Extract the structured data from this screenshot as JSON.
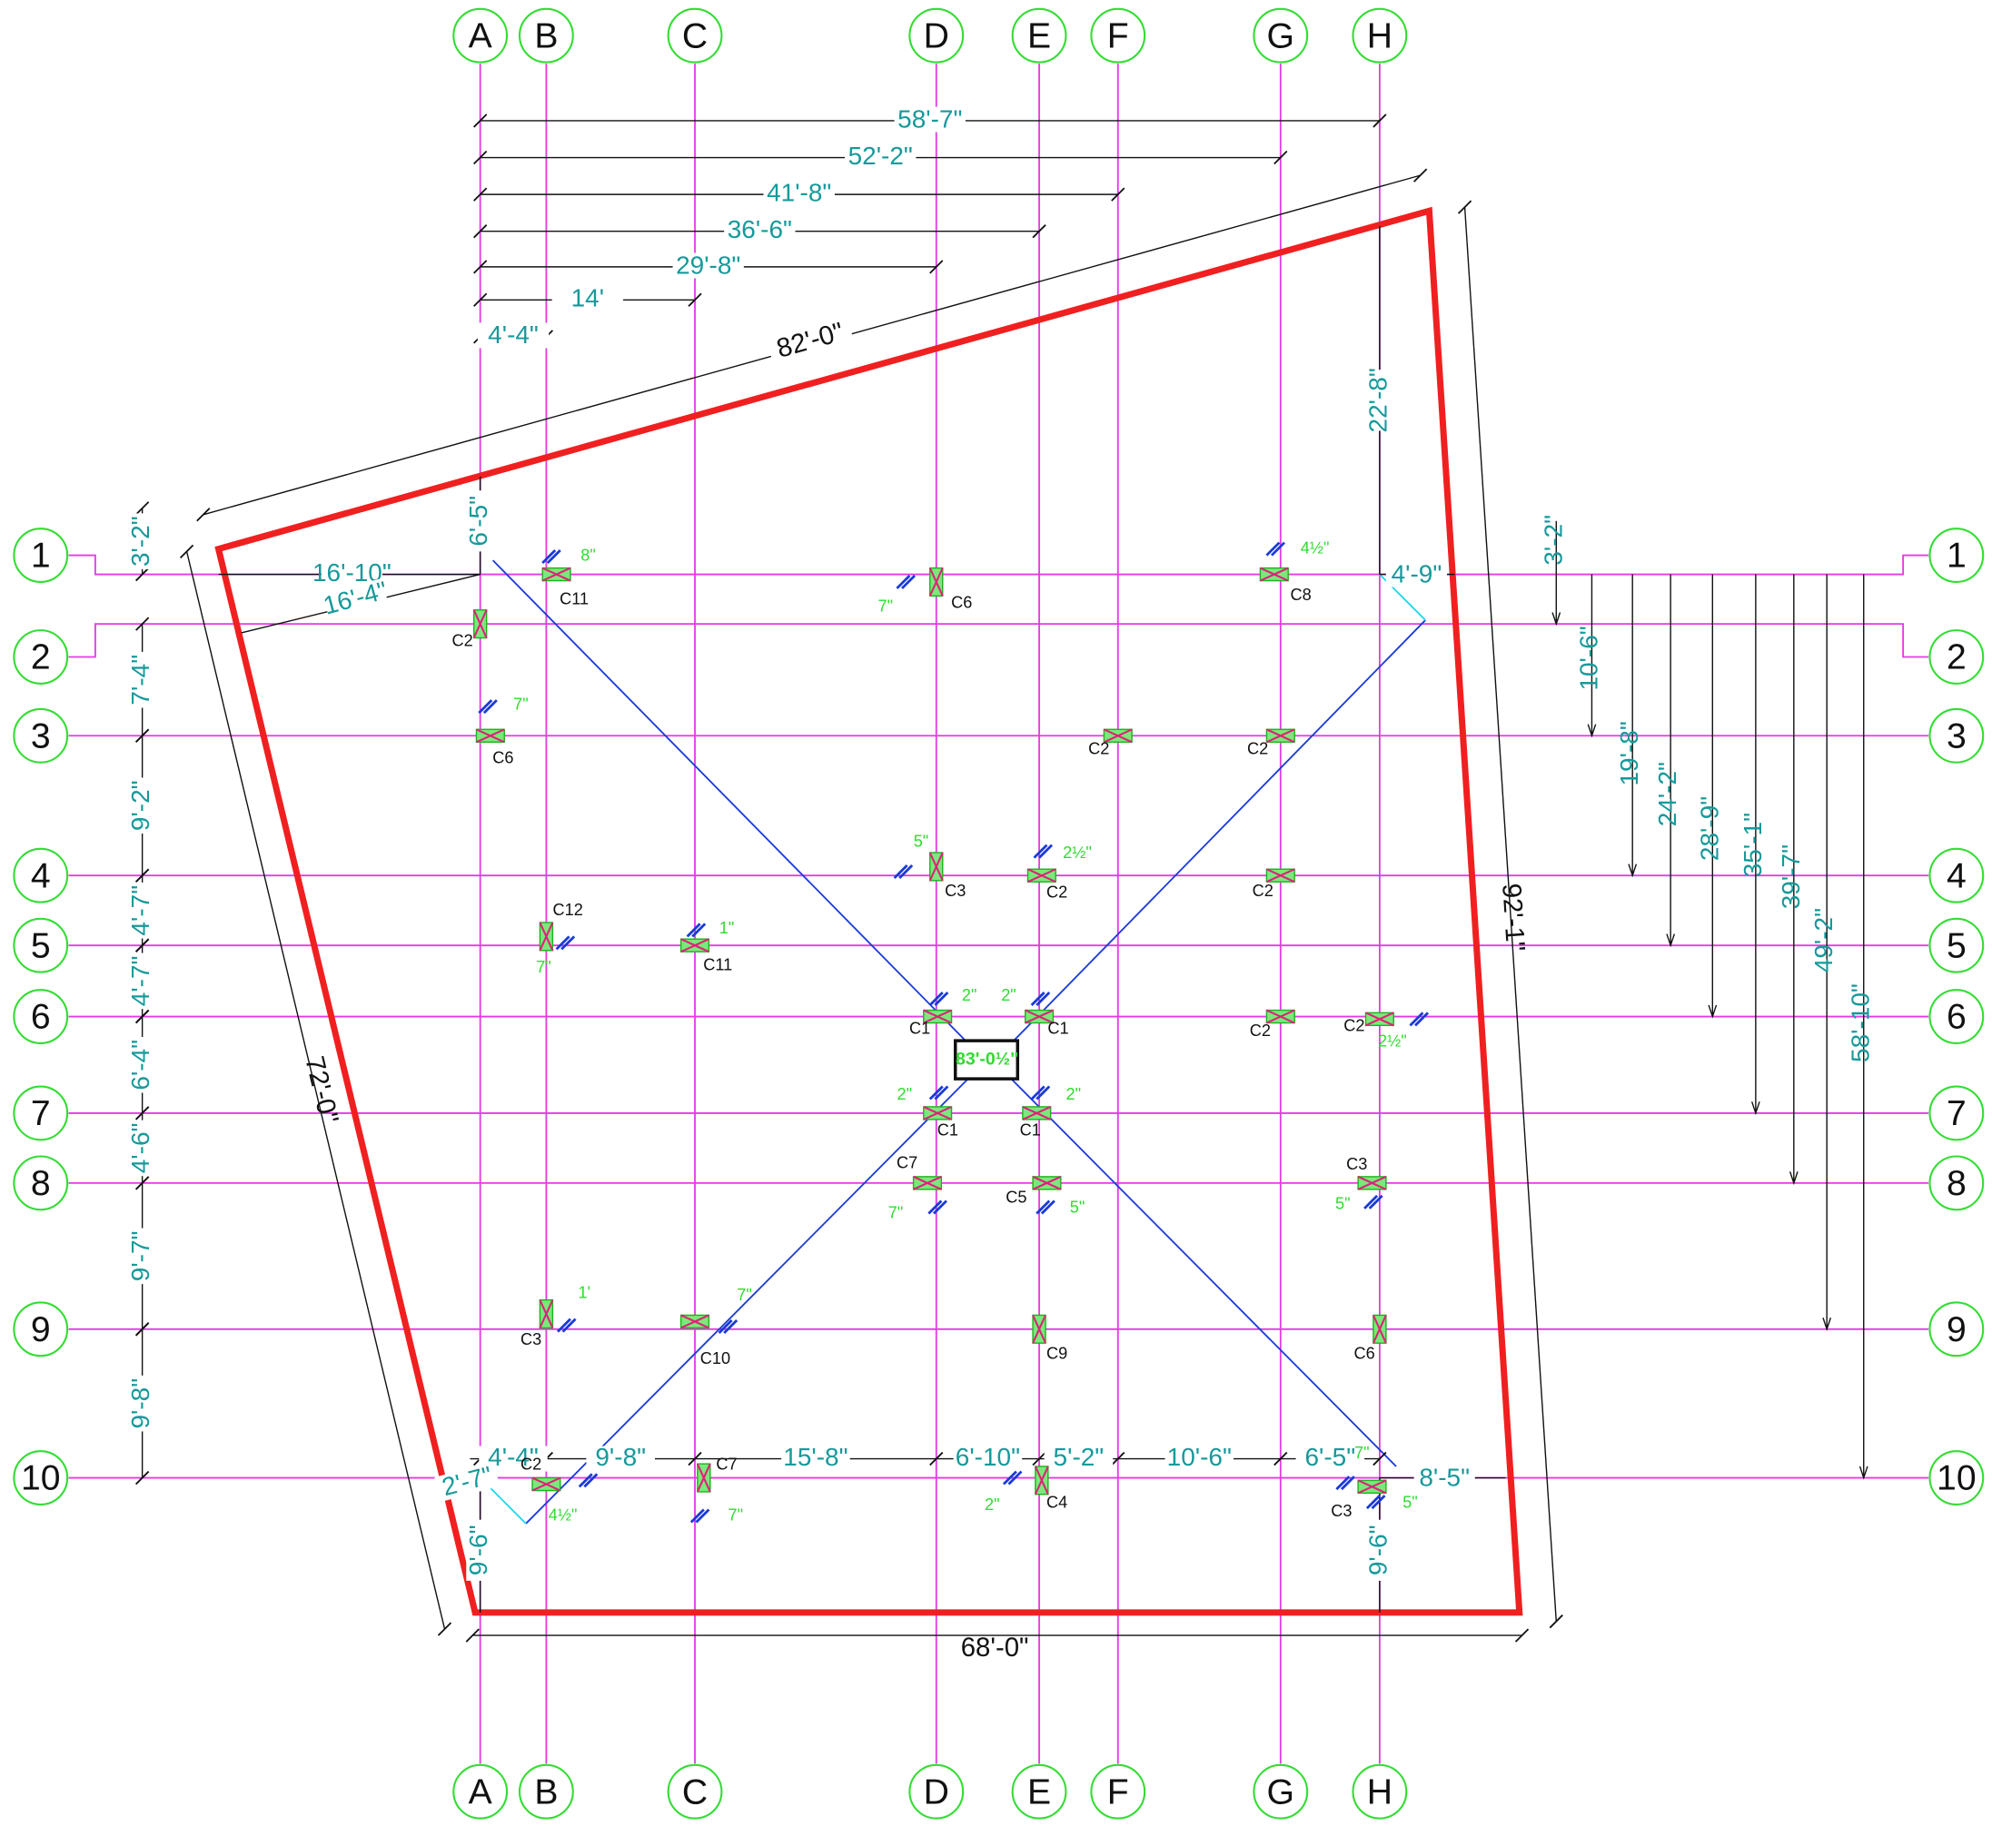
{
  "grid_columns": [
    "A",
    "B",
    "C",
    "D",
    "E",
    "F",
    "G",
    "H"
  ],
  "grid_rows": [
    "1",
    "2",
    "3",
    "4",
    "5",
    "6",
    "7",
    "8",
    "9",
    "10"
  ],
  "top_dimensions": [
    "58'-7\"",
    "52'-2\"",
    "41'-8\"",
    "36'-6\"",
    "29'-8\"",
    "14'",
    "4'-4\""
  ],
  "bottom_dimensions": [
    "4'-4\"",
    "9'-8\"",
    "15'-8\"",
    "6'-10\"",
    "5'-2\"",
    "10'-6\"",
    "6'-5\""
  ],
  "left_dimensions": [
    "3'-2\"",
    "7'-4\"",
    "9'-2\"",
    "4'-7\"",
    "4'-7\"",
    "6'-4\"",
    "4'-6\"",
    "9'-7\"",
    "9'-8\""
  ],
  "right_dimensions": [
    "3'-2\"",
    "10'-6\"",
    "19'-8\"",
    "24'-2\"",
    "28'-9\"",
    "35'-1\"",
    "39'-7\"",
    "49'-2\"",
    "58'-10\""
  ],
  "boundary_dimensions": {
    "top": "82'-0\"",
    "right": "92'-1\"",
    "bottom": "68'-0\"",
    "left": "72'-0\""
  },
  "other_dimensions": [
    "22'-8\"",
    "6'-5\"",
    "16'-10\"",
    "16'-4\"",
    "4'-9\"",
    "2'-7\"",
    "9'-6\"",
    "9'-6\"",
    "8'-5\""
  ],
  "center_label": "83'-0½\"",
  "column_labels": [
    "C11",
    "C6",
    "C8",
    "C2",
    "C6",
    "C2",
    "C2",
    "C3",
    "C2",
    "C2",
    "C12",
    "C11",
    "C1",
    "C1",
    "C2",
    "C2",
    "C1",
    "C1",
    "C7",
    "C5",
    "C3",
    "C3",
    "C10",
    "C9",
    "C6",
    "C2",
    "C7",
    "C4",
    "C3"
  ],
  "offset_labels": [
    "8\"",
    "7\"",
    "4½\"",
    "7\"",
    "5\"",
    "2½\"",
    "1\"",
    "7\"",
    "2\"",
    "2\"",
    "2½\"",
    "2\"",
    "2\"",
    "7\"",
    "5\"",
    "5\"",
    "1'",
    "7\"",
    "4½\"",
    "7\"",
    "2\"",
    "7\"",
    "5\""
  ]
}
